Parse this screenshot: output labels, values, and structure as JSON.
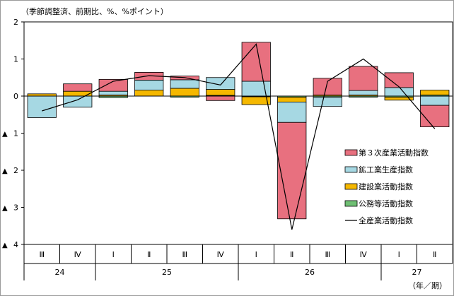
{
  "chart_data": {
    "type": "bar",
    "subtype": "stacked-bar-with-line",
    "title": "",
    "unit_label": "（季節調整済、前期比、%、%ポイント）",
    "xlabel": "（年／期）",
    "ylabel": "",
    "ylim": [
      -4,
      2
    ],
    "y_ticks": [
      2,
      1,
      0,
      -1,
      -2,
      -3,
      -4
    ],
    "y_tick_labels": [
      "2",
      "1",
      "0",
      "▲ 1",
      "▲ 2",
      "▲ 3",
      "▲ 4"
    ],
    "categories": [
      "Ⅲ",
      "Ⅳ",
      "Ⅰ",
      "Ⅱ",
      "Ⅲ",
      "Ⅳ",
      "Ⅰ",
      "Ⅱ",
      "Ⅲ",
      "Ⅳ",
      "Ⅰ",
      "Ⅱ"
    ],
    "year_groups": [
      {
        "label": "24",
        "span": 2
      },
      {
        "label": "25",
        "span": 4
      },
      {
        "label": "26",
        "span": 4
      },
      {
        "label": "27",
        "span": 2
      }
    ],
    "series": [
      {
        "name": "公務等活動指数",
        "kind": "bar",
        "color": "#6fbf73",
        "values": [
          0.0,
          0.0,
          -0.04,
          0.0,
          -0.03,
          0.02,
          -0.02,
          -0.03,
          -0.03,
          -0.03,
          -0.03,
          0.03
        ]
      },
      {
        "name": "建設業活動指数",
        "kind": "bar",
        "color": "#f5b800",
        "values": [
          0.06,
          0.13,
          0.03,
          0.16,
          0.21,
          0.16,
          -0.21,
          -0.13,
          0.03,
          0.03,
          -0.08,
          0.13
        ]
      },
      {
        "name": "鉱工業生産指数",
        "kind": "bar",
        "color": "#a6d8e3",
        "values": [
          -0.58,
          -0.3,
          0.1,
          0.27,
          0.23,
          0.32,
          0.4,
          -0.55,
          -0.25,
          0.12,
          0.23,
          -0.25
        ]
      },
      {
        "name": "第３次産業活動指数",
        "kind": "bar",
        "color": "#e8707f",
        "values": [
          0.0,
          0.2,
          0.32,
          0.21,
          0.1,
          -0.12,
          1.05,
          -2.6,
          0.45,
          0.65,
          0.4,
          -0.58
        ]
      },
      {
        "name": "全産業活動指数",
        "kind": "line",
        "color": "#000000",
        "values": [
          -0.4,
          -0.1,
          0.4,
          0.55,
          0.5,
          0.3,
          1.4,
          -3.6,
          0.4,
          1.0,
          0.25,
          -0.88
        ]
      }
    ],
    "legend": {
      "position": "right-lower",
      "entries": [
        {
          "name": "第３次産業活動指数",
          "symbol": "box",
          "color": "#e8707f"
        },
        {
          "name": "鉱工業生産指数",
          "symbol": "box",
          "color": "#a6d8e3"
        },
        {
          "name": "建設業活動指数",
          "symbol": "box",
          "color": "#f5b800"
        },
        {
          "name": "公務等活動指数",
          "symbol": "box",
          "color": "#6fbf73"
        },
        {
          "name": "全産業活動指数",
          "symbol": "line",
          "color": "#000000"
        }
      ]
    },
    "grid": false
  }
}
